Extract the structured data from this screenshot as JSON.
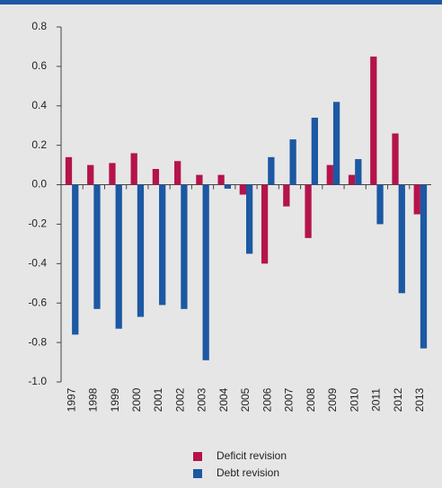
{
  "chart_data": {
    "type": "bar",
    "categories": [
      "1997",
      "1998",
      "1999",
      "2000",
      "2001",
      "2002",
      "2003",
      "2004",
      "2005",
      "2006",
      "2007",
      "2008",
      "2009",
      "2010",
      "2011",
      "2012",
      "2013"
    ],
    "series": [
      {
        "name": "Deficit revision",
        "color": "#b5134b",
        "values": [
          0.14,
          0.1,
          0.11,
          0.16,
          0.08,
          0.12,
          0.05,
          0.05,
          -0.05,
          -0.4,
          -0.11,
          -0.27,
          0.1,
          0.05,
          0.65,
          0.26,
          -0.15
        ]
      },
      {
        "name": "Debt revision",
        "color": "#1c58a3",
        "values": [
          -0.76,
          -0.63,
          -0.73,
          -0.67,
          -0.61,
          -0.63,
          -0.89,
          -0.02,
          -0.35,
          0.14,
          0.23,
          0.34,
          0.42,
          0.13,
          -0.2,
          -0.55,
          -0.83
        ]
      }
    ],
    "ylim": [
      -1.0,
      0.8
    ],
    "yticks": [
      {
        "value": -1,
        "label": "-1.0"
      },
      -0.8,
      -0.6,
      -0.4,
      -0.2,
      {
        "value": 0,
        "label": "0.0"
      },
      0.2,
      0.4,
      0.6,
      0.8
    ]
  }
}
